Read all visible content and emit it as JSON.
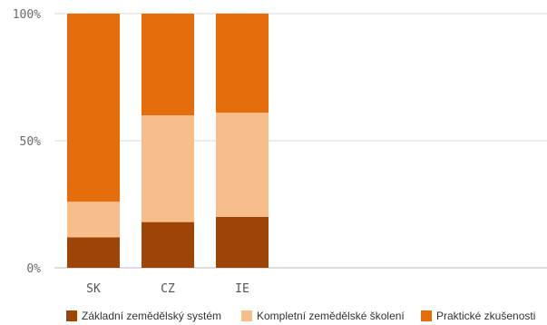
{
  "chart_data": {
    "type": "bar",
    "stacked": true,
    "normalized_percent": true,
    "categories": [
      "SK",
      "CZ",
      "IE"
    ],
    "series": [
      {
        "name": "Základní zemědělský systém",
        "color": "#9c4506",
        "values": [
          12,
          18,
          20
        ]
      },
      {
        "name": "Kompletní zemědělské školení",
        "color": "#f7bd8a",
        "values": [
          14,
          42,
          41
        ]
      },
      {
        "name": "Praktické zkušenosti",
        "color": "#e56d0b",
        "values": [
          74,
          40,
          39
        ]
      }
    ],
    "y_ticks": [
      "100%",
      "50%",
      "0%"
    ],
    "ylim": [
      0,
      100
    ],
    "grid": true,
    "legend_position": "bottom"
  }
}
